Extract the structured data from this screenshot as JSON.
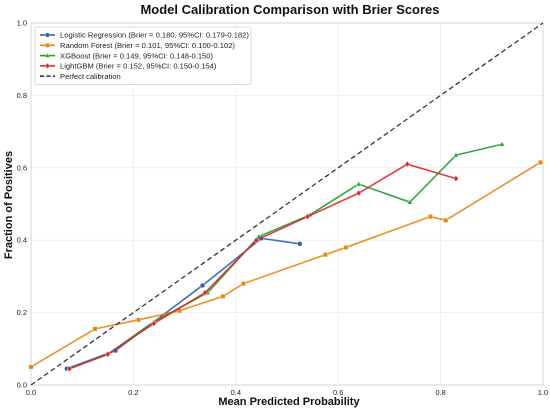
{
  "chart_data": {
    "type": "line",
    "title": "Model Calibration Comparison with Brier Scores",
    "xlabel": "Mean Predicted Probability",
    "ylabel": "Fraction of Positives",
    "xlim": [
      0,
      1
    ],
    "ylim": [
      0,
      1
    ],
    "xticks": [
      "0.0",
      "0.2",
      "0.4",
      "0.6",
      "0.8",
      "1.0"
    ],
    "yticks": [
      "0.0",
      "0.2",
      "0.4",
      "0.6",
      "0.8",
      "1.0"
    ],
    "grid": true,
    "legend_position": "top-left",
    "series": [
      {
        "name": "Logistic Regression (Brier = 0.180, 95%CI: 0.179-0.182)",
        "color": "#2b5fb4",
        "marker": "circle",
        "line": "solid",
        "x": [
          0.07,
          0.165,
          0.335,
          0.45,
          0.525
        ],
        "y": [
          0.045,
          0.095,
          0.275,
          0.405,
          0.39
        ]
      },
      {
        "name": "Random Forest (Brier = 0.101, 95%CI: 0.100-0.102)",
        "color": "#e8850c",
        "marker": "square",
        "line": "solid",
        "x": [
          0.0,
          0.125,
          0.21,
          0.29,
          0.375,
          0.415,
          0.575,
          0.615,
          0.78,
          0.81,
          0.995
        ],
        "y": [
          0.05,
          0.155,
          0.18,
          0.205,
          0.245,
          0.28,
          0.36,
          0.38,
          0.465,
          0.455,
          0.615
        ]
      },
      {
        "name": "XGBoost (Brier = 0.149, 95%CI: 0.148-0.150)",
        "color": "#1e9e2e",
        "marker": "triangle",
        "line": "solid",
        "x": [
          0.075,
          0.15,
          0.24,
          0.345,
          0.445,
          0.545,
          0.64,
          0.74,
          0.83,
          0.92
        ],
        "y": [
          0.045,
          0.085,
          0.175,
          0.255,
          0.41,
          0.47,
          0.555,
          0.505,
          0.635,
          0.665
        ]
      },
      {
        "name": "LightGBM (Brier = 0.152, 95%CI: 0.150-0.154)",
        "color": "#e0262b",
        "marker": "diamond",
        "line": "solid",
        "x": [
          0.075,
          0.15,
          0.24,
          0.34,
          0.44,
          0.54,
          0.64,
          0.735,
          0.83
        ],
        "y": [
          0.045,
          0.085,
          0.17,
          0.255,
          0.4,
          0.465,
          0.53,
          0.61,
          0.57
        ]
      },
      {
        "name": "Perfect calibration",
        "color": "#333333",
        "marker": "none",
        "line": "dashed",
        "x": [
          0,
          1
        ],
        "y": [
          0,
          1
        ]
      }
    ]
  }
}
